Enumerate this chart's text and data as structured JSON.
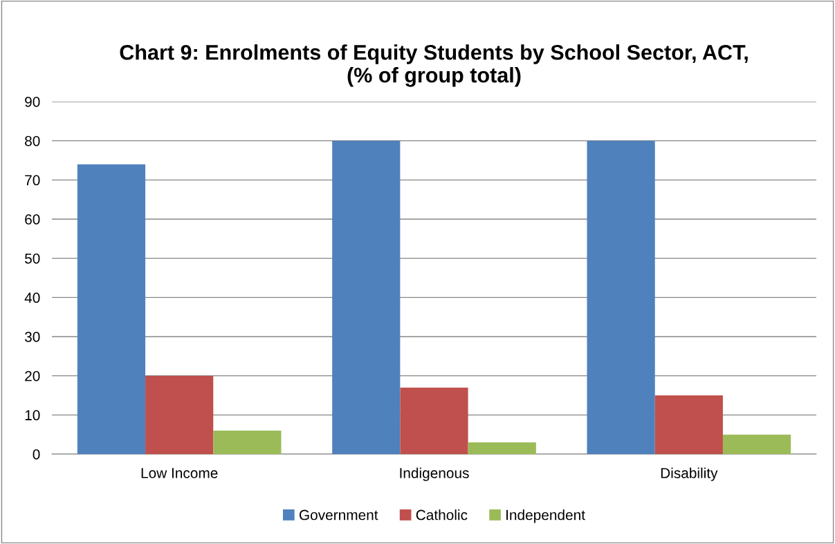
{
  "chart_data": {
    "type": "bar",
    "title": "Chart 9: Enrolments of Equity Students by School Sector, ACT,\n(% of group total)",
    "categories": [
      "Low Income",
      "Indigenous",
      "Disability"
    ],
    "series": [
      {
        "name": "Government",
        "color": "#4f81bd",
        "values": [
          74,
          80,
          80
        ]
      },
      {
        "name": "Catholic",
        "color": "#c0504d",
        "values": [
          20,
          17,
          15
        ]
      },
      {
        "name": "Independent",
        "color": "#9bbb59",
        "values": [
          6,
          3,
          5
        ]
      }
    ],
    "ylim": [
      0,
      90
    ],
    "yticks": [
      0,
      10,
      20,
      30,
      40,
      50,
      60,
      70,
      80,
      90
    ],
    "grid": "y",
    "legend": "bottom"
  }
}
